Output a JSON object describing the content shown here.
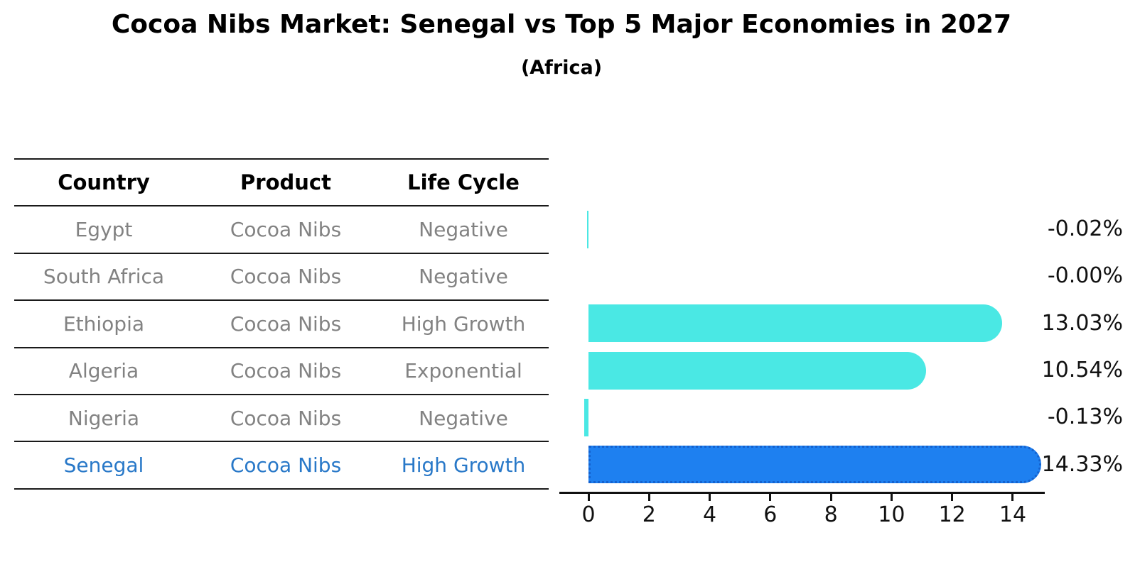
{
  "title": "Cocoa Nibs Market: Senegal vs Top 5 Major Economies in 2027",
  "subtitle": "(Africa)",
  "table": {
    "headers": [
      "Country",
      "Product",
      "Life Cycle"
    ],
    "rows": [
      {
        "country": "Egypt",
        "product": "Cocoa Nibs",
        "life_cycle": "Negative",
        "highlight": false
      },
      {
        "country": "South Africa",
        "product": "Cocoa Nibs",
        "life_cycle": "Negative",
        "highlight": false
      },
      {
        "country": "Ethiopia",
        "product": "Cocoa Nibs",
        "life_cycle": "High Growth",
        "highlight": false
      },
      {
        "country": "Algeria",
        "product": "Cocoa Nibs",
        "life_cycle": "Exponential",
        "highlight": false
      },
      {
        "country": "Nigeria",
        "product": "Cocoa Nibs",
        "life_cycle": "Negative",
        "highlight": false
      },
      {
        "country": "Senegal",
        "product": "Cocoa Nibs",
        "life_cycle": "High Growth",
        "highlight": true
      }
    ]
  },
  "chart_data": {
    "type": "bar",
    "orientation": "horizontal",
    "title": "Cocoa Nibs Market: Senegal vs Top 5 Major Economies in 2027 (Africa)",
    "categories": [
      "Egypt",
      "South Africa",
      "Ethiopia",
      "Algeria",
      "Nigeria",
      "Senegal"
    ],
    "values": [
      -0.02,
      -0.0,
      13.03,
      10.54,
      -0.13,
      14.33
    ],
    "value_labels": [
      "-0.02%",
      "-0.00%",
      "13.03%",
      "10.54%",
      "-0.13%",
      "14.33%"
    ],
    "x_ticks": [
      0,
      2,
      4,
      6,
      8,
      10,
      12,
      14
    ],
    "xlim": [
      -0.95,
      15.1
    ],
    "grid": false,
    "legend": "none",
    "highlight_index": 5,
    "xlabel": "",
    "ylabel": ""
  },
  "colors": {
    "bar": "#4AE8E4",
    "highlight_bar": "#1E80F0",
    "highlight_border": "#1461CE",
    "highlight_text": "#2878C8",
    "table_text": "#828282",
    "axis": "#111111"
  }
}
